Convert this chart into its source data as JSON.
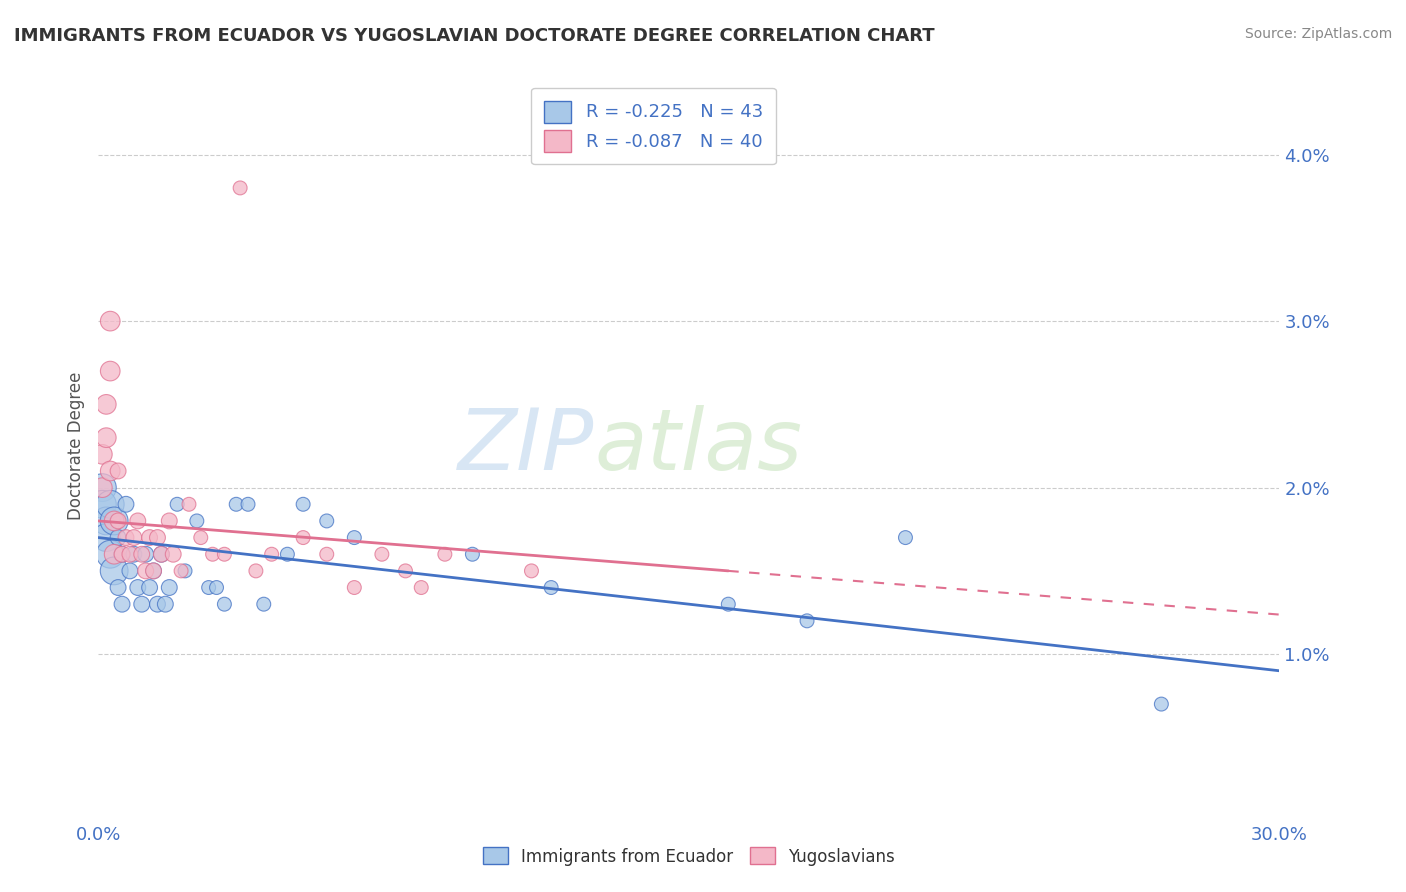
{
  "title": "IMMIGRANTS FROM ECUADOR VS YUGOSLAVIAN DOCTORATE DEGREE CORRELATION CHART",
  "source": "Source: ZipAtlas.com",
  "ylabel": "Doctorate Degree",
  "legend_labels": [
    "Immigrants from Ecuador",
    "Yugoslavians"
  ],
  "legend_r": [
    -0.225,
    -0.087
  ],
  "legend_n": [
    43,
    40
  ],
  "xlim": [
    0.0,
    0.3
  ],
  "ylim": [
    0.0,
    0.045
  ],
  "ytick_vals": [
    0.01,
    0.02,
    0.03,
    0.04
  ],
  "ytick_labels": [
    "1.0%",
    "2.0%",
    "3.0%",
    "4.0%"
  ],
  "xtick_vals": [
    0.0,
    0.05,
    0.1,
    0.15,
    0.2,
    0.25,
    0.3
  ],
  "xtick_labels": [
    "0.0%",
    "",
    "",
    "",
    "",
    "",
    "30.0%"
  ],
  "color_blue": "#A8C8E8",
  "color_pink": "#F4B8C8",
  "line_blue": "#4472C4",
  "line_pink": "#E07090",
  "watermark_text": "ZIPatlas",
  "ecuador_xy": [
    [
      0.001,
      0.02
    ],
    [
      0.001,
      0.019
    ],
    [
      0.002,
      0.018
    ],
    [
      0.002,
      0.017
    ],
    [
      0.003,
      0.019
    ],
    [
      0.003,
      0.016
    ],
    [
      0.004,
      0.018
    ],
    [
      0.004,
      0.015
    ],
    [
      0.005,
      0.017
    ],
    [
      0.005,
      0.014
    ],
    [
      0.006,
      0.016
    ],
    [
      0.006,
      0.013
    ],
    [
      0.007,
      0.019
    ],
    [
      0.008,
      0.015
    ],
    [
      0.009,
      0.016
    ],
    [
      0.01,
      0.014
    ],
    [
      0.011,
      0.013
    ],
    [
      0.012,
      0.016
    ],
    [
      0.013,
      0.014
    ],
    [
      0.014,
      0.015
    ],
    [
      0.015,
      0.013
    ],
    [
      0.016,
      0.016
    ],
    [
      0.017,
      0.013
    ],
    [
      0.018,
      0.014
    ],
    [
      0.02,
      0.019
    ],
    [
      0.022,
      0.015
    ],
    [
      0.025,
      0.018
    ],
    [
      0.028,
      0.014
    ],
    [
      0.03,
      0.014
    ],
    [
      0.032,
      0.013
    ],
    [
      0.035,
      0.019
    ],
    [
      0.038,
      0.019
    ],
    [
      0.042,
      0.013
    ],
    [
      0.048,
      0.016
    ],
    [
      0.052,
      0.019
    ],
    [
      0.058,
      0.018
    ],
    [
      0.065,
      0.017
    ],
    [
      0.095,
      0.016
    ],
    [
      0.115,
      0.014
    ],
    [
      0.16,
      0.013
    ],
    [
      0.18,
      0.012
    ],
    [
      0.205,
      0.017
    ],
    [
      0.27,
      0.007
    ]
  ],
  "yugoslav_xy": [
    [
      0.001,
      0.022
    ],
    [
      0.001,
      0.02
    ],
    [
      0.002,
      0.025
    ],
    [
      0.002,
      0.023
    ],
    [
      0.003,
      0.03
    ],
    [
      0.003,
      0.027
    ],
    [
      0.003,
      0.021
    ],
    [
      0.004,
      0.018
    ],
    [
      0.004,
      0.016
    ],
    [
      0.005,
      0.021
    ],
    [
      0.005,
      0.018
    ],
    [
      0.006,
      0.016
    ],
    [
      0.007,
      0.017
    ],
    [
      0.008,
      0.016
    ],
    [
      0.009,
      0.017
    ],
    [
      0.01,
      0.018
    ],
    [
      0.011,
      0.016
    ],
    [
      0.012,
      0.015
    ],
    [
      0.013,
      0.017
    ],
    [
      0.014,
      0.015
    ],
    [
      0.015,
      0.017
    ],
    [
      0.016,
      0.016
    ],
    [
      0.018,
      0.018
    ],
    [
      0.019,
      0.016
    ],
    [
      0.021,
      0.015
    ],
    [
      0.023,
      0.019
    ],
    [
      0.026,
      0.017
    ],
    [
      0.029,
      0.016
    ],
    [
      0.032,
      0.016
    ],
    [
      0.036,
      0.038
    ],
    [
      0.04,
      0.015
    ],
    [
      0.044,
      0.016
    ],
    [
      0.052,
      0.017
    ],
    [
      0.058,
      0.016
    ],
    [
      0.065,
      0.014
    ],
    [
      0.072,
      0.016
    ],
    [
      0.078,
      0.015
    ],
    [
      0.082,
      0.014
    ],
    [
      0.088,
      0.016
    ],
    [
      0.11,
      0.015
    ]
  ],
  "ecuador_line_x": [
    0.0,
    0.3
  ],
  "ecuador_line_y": [
    0.017,
    0.009
  ],
  "yugoslav_line_x": [
    0.0,
    0.16
  ],
  "yugoslav_line_y": [
    0.018,
    0.015
  ]
}
